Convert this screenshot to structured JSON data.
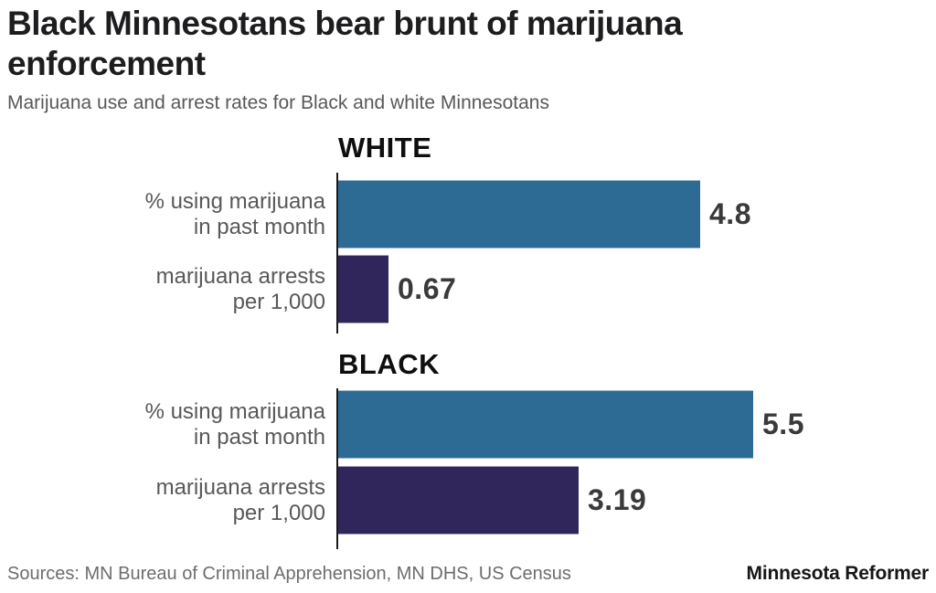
{
  "title_lines": [
    "Black Minnesotans bear brunt of marijuana",
    "enforcement"
  ],
  "subtitle": "Marijuana use and arrest rates for Black and white Minnesotans",
  "footer": {
    "sources": "Sources: MN Bureau of Criminal Apprehension, MN DHS, US Census",
    "brand": "Minnesota Reformer"
  },
  "colors": {
    "use_bar": "#2d6b94",
    "arrest_bar": "#30265b",
    "axis": "#1a1a1a",
    "value_label": "#3a3a3a",
    "category_label": "#58585a"
  },
  "chart_data": {
    "type": "bar",
    "orientation": "horizontal",
    "title": "Black Minnesotans bear brunt of marijuana enforcement",
    "subtitle": "Marijuana use and arrest rates for Black and white Minnesotans",
    "grid": false,
    "legend": "none",
    "xlim": [
      0,
      5.5
    ],
    "groups": [
      {
        "label": "WHITE",
        "bars": [
          {
            "category_lines": [
              "% using marijuana",
              "in past month"
            ],
            "category": "% using marijuana in past month",
            "value": 4.8,
            "value_label": "4.8",
            "color": "#2d6b94"
          },
          {
            "category_lines": [
              "marijuana arrests",
              "per 1,000"
            ],
            "category": "marijuana arrests per 1,000",
            "value": 0.67,
            "value_label": "0.67",
            "color": "#30265b"
          }
        ]
      },
      {
        "label": "BLACK",
        "bars": [
          {
            "category_lines": [
              "% using marijuana",
              "in past month"
            ],
            "category": "% using marijuana in past month",
            "value": 5.5,
            "value_label": "5.5",
            "color": "#2d6b94"
          },
          {
            "category_lines": [
              "marijuana arrests",
              "per 1,000"
            ],
            "category": "marijuana arrests per 1,000",
            "value": 3.19,
            "value_label": "3.19",
            "color": "#30265b"
          }
        ]
      }
    ]
  }
}
